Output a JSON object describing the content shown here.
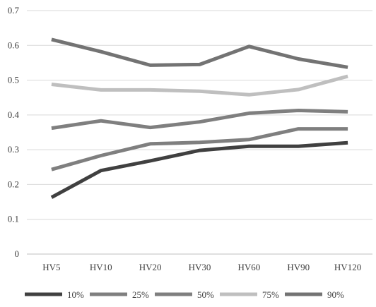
{
  "chart_data": {
    "type": "line",
    "title": "",
    "xlabel": "",
    "ylabel": "",
    "categories": [
      "HV5",
      "HV10",
      "HV20",
      "HV30",
      "HV60",
      "HV90",
      "HV120"
    ],
    "ylim": [
      0,
      0.7
    ],
    "yticks": [
      "0",
      "0.1",
      "0.2",
      "0.3",
      "0.4",
      "0.5",
      "0.6",
      "0.7"
    ],
    "grid": true,
    "legend_position": "bottom",
    "series": [
      {
        "name": "10%",
        "color": "#404040",
        "values": [
          0.163,
          0.24,
          0.268,
          0.298,
          0.31,
          0.31,
          0.32
        ]
      },
      {
        "name": "25%",
        "color": "#7f7f7f",
        "values": [
          0.243,
          0.283,
          0.317,
          0.321,
          0.329,
          0.36,
          0.36
        ]
      },
      {
        "name": "50%",
        "color": "#7f7f7f",
        "values": [
          0.362,
          0.383,
          0.364,
          0.38,
          0.405,
          0.413,
          0.409
        ]
      },
      {
        "name": "75%",
        "color": "#bfbfbf",
        "values": [
          0.488,
          0.472,
          0.472,
          0.468,
          0.458,
          0.473,
          0.511
        ]
      },
      {
        "name": "90%",
        "color": "#737373",
        "values": [
          0.617,
          0.582,
          0.543,
          0.545,
          0.597,
          0.561,
          0.537
        ]
      }
    ]
  }
}
